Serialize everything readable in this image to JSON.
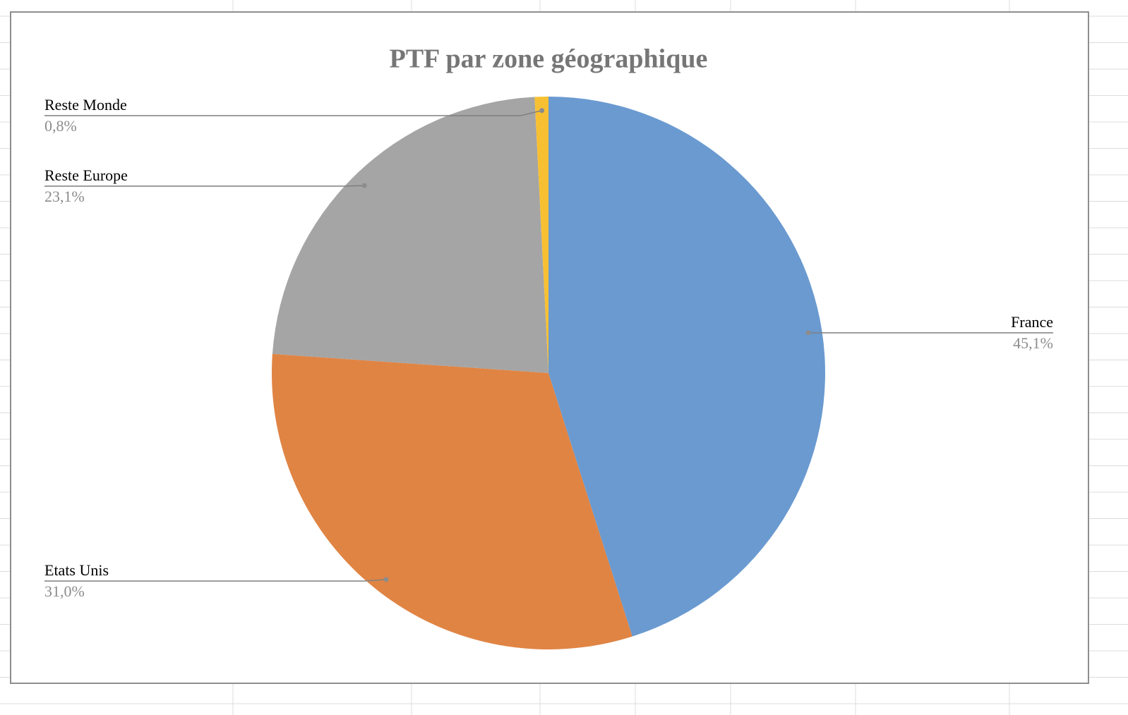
{
  "chart_data": {
    "type": "pie",
    "title": "PTF par zone géographique",
    "categories": [
      "France",
      "Etats Unis",
      "Reste Europe",
      "Reste Monde"
    ],
    "values": [
      45.1,
      31.0,
      23.1,
      0.8
    ],
    "value_labels": [
      "45,1%",
      "31,0%",
      "23,1%",
      "0,8%"
    ],
    "colors": [
      "#6a9ad0",
      "#e08444",
      "#a5a5a5",
      "#f7c033"
    ]
  }
}
